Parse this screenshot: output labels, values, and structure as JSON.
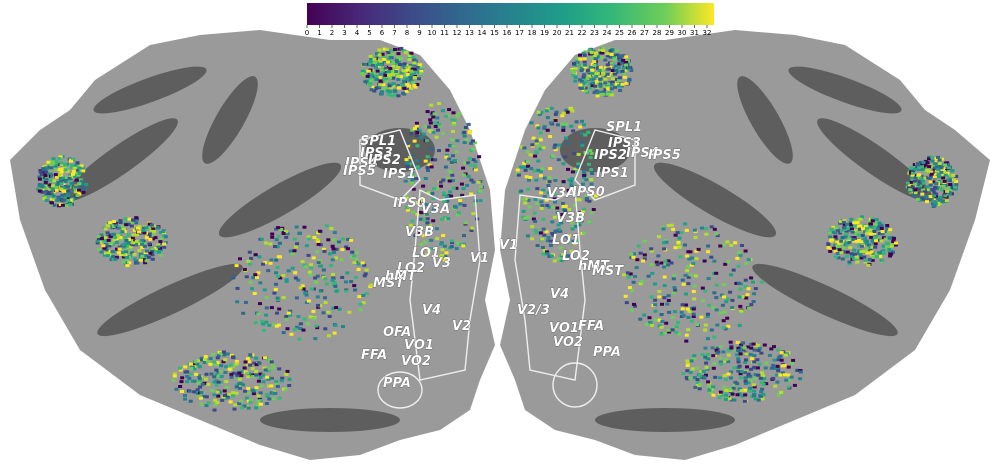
{
  "colorbar": {
    "min": 0,
    "max": 32,
    "ticks": [
      0,
      1,
      2,
      3,
      4,
      5,
      6,
      7,
      8,
      9,
      10,
      11,
      12,
      13,
      14,
      15,
      16,
      17,
      18,
      19,
      20,
      21,
      22,
      23,
      24,
      25,
      26,
      27,
      28,
      29,
      30,
      31,
      32
    ]
  },
  "left_rois": [
    "SPL1",
    "IPS3",
    "IPS4",
    "IPS2",
    "IPS5",
    "IPS1",
    "IPS0",
    "V3A",
    "V3B",
    "LO1",
    "LO2",
    "V3",
    "V1",
    "MST",
    "hMT",
    "V4",
    "V2",
    "OFA",
    "VO1",
    "FFA",
    "VO2",
    "PPA"
  ],
  "right_rois": [
    "SPL1",
    "IPS3",
    "IPS4",
    "IPS2",
    "IPS5",
    "IPS1",
    "V3A",
    "IPS0",
    "V3B",
    "LO1",
    "LO2",
    "hMT",
    "MST",
    "V1",
    "V4",
    "V2/3",
    "VO1",
    "FFA",
    "VO2",
    "PPA"
  ]
}
